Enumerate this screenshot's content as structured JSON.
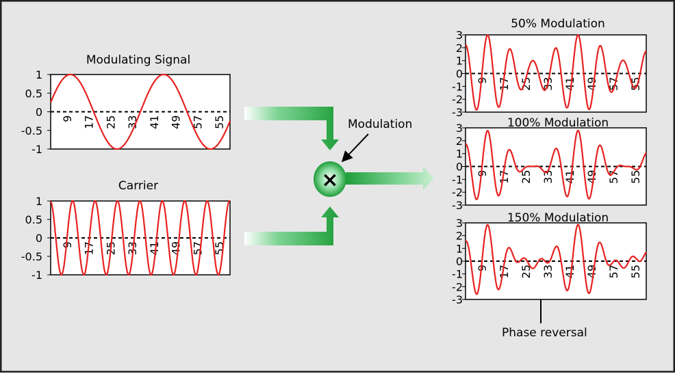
{
  "colors": {
    "background": "#e6e6e6",
    "border": "#222222",
    "wave": "#e8211f",
    "arrow_green_dark": "#1f9e3a",
    "arrow_green_light": "#c9efd2",
    "plot_bg": "#ffffff"
  },
  "labels": {
    "modulation": "Modulation",
    "phase_reversal": "Phase reversal",
    "multiplier_icon": "×"
  },
  "chart_data": [
    {
      "id": "mod",
      "type": "line",
      "title": "Modulating Signal",
      "ylim": [
        -1,
        1
      ],
      "ytick_labels": [
        "1",
        "0.5",
        "0",
        "-0.5",
        "-1"
      ],
      "xtick_labels": [
        "9",
        "17",
        "25",
        "33",
        "41",
        "49",
        "57",
        "55"
      ],
      "series": [
        {
          "kind": "sine",
          "amplitude": 1,
          "samples_per_cycle": 32,
          "phase_start": 0.04,
          "cycles": 1.92
        }
      ]
    },
    {
      "id": "car",
      "type": "line",
      "title": "Carrier",
      "ylim": [
        -1,
        1
      ],
      "ytick_labels": [
        "1",
        "0.5",
        "0",
        "-0.5",
        "-1"
      ],
      "xtick_labels": [
        "9",
        "17",
        "25",
        "33",
        "41",
        "49",
        "57",
        "55"
      ],
      "series": [
        {
          "kind": "sine",
          "amplitude": 1,
          "samples_per_cycle": 8,
          "phase_start": 0.27,
          "cycles": 8.0
        }
      ]
    },
    {
      "id": "m50",
      "type": "line",
      "title": "50% Modulation",
      "ylim": [
        -3,
        3
      ],
      "ytick_labels": [
        "3",
        "2",
        "1",
        "0",
        "-1",
        "-2",
        "-3"
      ],
      "xtick_labels": [
        "9",
        "17",
        "25",
        "33",
        "41",
        "49",
        "57",
        "55"
      ],
      "series": [
        {
          "kind": "am",
          "modulation_index": 0.5,
          "carrier_amplitude": 2
        }
      ]
    },
    {
      "id": "m100",
      "type": "line",
      "title": "100% Modulation",
      "ylim": [
        -3,
        3
      ],
      "ytick_labels": [
        "3",
        "2",
        "1",
        "0",
        "-1",
        "-2",
        "-3"
      ],
      "xtick_labels": [
        "9",
        "17",
        "25",
        "33",
        "41",
        "49",
        "57",
        "55"
      ],
      "series": [
        {
          "kind": "am",
          "modulation_index": 1.0,
          "carrier_amplitude": 1.4
        }
      ]
    },
    {
      "id": "m150",
      "type": "line",
      "title": "150% Modulation",
      "ylim": [
        -3,
        3
      ],
      "ytick_labels": [
        "3",
        "2",
        "1",
        "0",
        "-1",
        "-2",
        "-3"
      ],
      "xtick_labels": [
        "9",
        "17",
        "25",
        "33",
        "41",
        "49",
        "57",
        "55"
      ],
      "series": [
        {
          "kind": "am",
          "modulation_index": 1.5,
          "carrier_amplitude": 1.15
        }
      ]
    }
  ]
}
